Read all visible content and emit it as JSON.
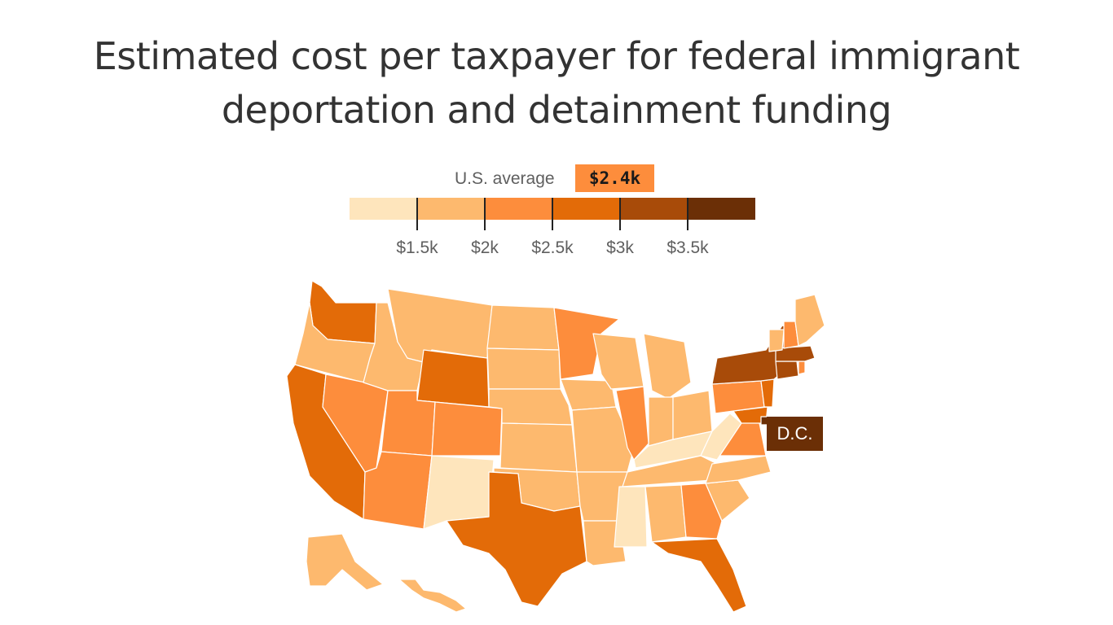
{
  "title": "Estimated cost per taxpayer for federal immigrant deportation and detainment funding",
  "average": {
    "label": "U.S. average",
    "value": "$2.4k",
    "color": "#fd8d3c"
  },
  "legend": {
    "colors": [
      "#fee5bc",
      "#fdb96e",
      "#fd8d3c",
      "#e36b08",
      "#a84b09",
      "#6b2f06"
    ],
    "ticks": [
      "$1.5k",
      "$2k",
      "$2.5k",
      "$3k",
      "$3.5k"
    ],
    "tick_values": [
      1500,
      2000,
      2500,
      3000,
      3500
    ]
  },
  "dc_label": "D.C.",
  "states": {
    "WA": 4,
    "OR": 2,
    "CA": 4,
    "NV": 3,
    "ID": 2,
    "MT": 2,
    "WY": 4,
    "UT": 3,
    "AZ": 3,
    "CO": 3,
    "NM": 1,
    "ND": 2,
    "SD": 2,
    "NE": 2,
    "KS": 2,
    "OK": 2,
    "TX": 4,
    "MN": 3,
    "IA": 2,
    "MO": 2,
    "AR": 2,
    "LA": 2,
    "WI": 2,
    "IL": 3,
    "MI": 2,
    "IN": 2,
    "OH": 2,
    "KY": 1,
    "TN": 2,
    "MS": 1,
    "AL": 2,
    "GA": 3,
    "FL": 4,
    "SC": 2,
    "NC": 2,
    "VA": 3,
    "WV": 1,
    "MD": 4,
    "DE": 3,
    "PA": 3,
    "NJ": 4,
    "NY": 5,
    "CT": 5,
    "RI": 3,
    "MA": 5,
    "VT": 2,
    "NH": 3,
    "ME": 2,
    "AK": 2,
    "HI": 2,
    "DC": 6
  }
}
